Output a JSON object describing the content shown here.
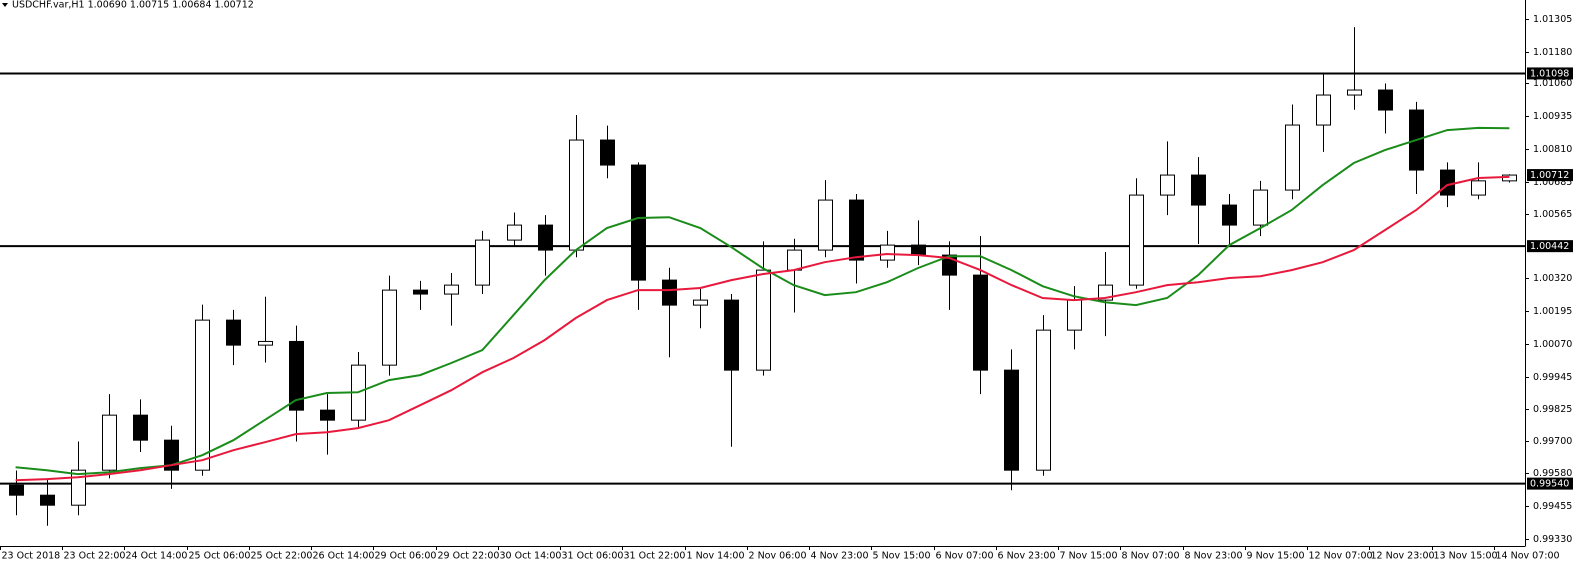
{
  "chart_data": {
    "type": "candlestick",
    "title": "USDCHF.var,H1  1.00690 1.00715 1.00684 1.00712",
    "categories": [
      "23 Oct 2018",
      null,
      "23 Oct 22:00",
      null,
      "24 Oct 14:00",
      null,
      "25 Oct 06:00",
      null,
      "25 Oct 22:00",
      null,
      "26 Oct 14:00",
      null,
      "29 Oct 06:00",
      null,
      "29 Oct 22:00",
      null,
      "30 Oct 14:00",
      null,
      "31 Oct 06:00",
      null,
      "31 Oct 22:00",
      null,
      "1 Nov 14:00",
      null,
      "2 Nov 06:00",
      null,
      "4 Nov 23:00",
      null,
      "5 Nov 15:00",
      null,
      "6 Nov 07:00",
      null,
      "6 Nov 23:00",
      null,
      "7 Nov 15:00",
      null,
      "8 Nov 07:00",
      null,
      "8 Nov 23:00",
      null,
      "9 Nov 15:00",
      null,
      "12 Nov 07:00",
      null,
      "12 Nov 23:00",
      null,
      "13 Nov 15:00",
      null,
      "14 Nov 07:00"
    ],
    "ohlc": [
      [
        0.99534,
        0.9959,
        0.9942,
        0.99496
      ],
      [
        0.99496,
        0.9956,
        0.9938,
        0.99458
      ],
      [
        0.99458,
        0.997,
        0.9942,
        0.99591
      ],
      [
        0.99591,
        0.9988,
        0.9956,
        0.998
      ],
      [
        0.998,
        0.9986,
        0.9966,
        0.99705
      ],
      [
        0.99705,
        0.9976,
        0.9952,
        0.99591
      ],
      [
        0.99591,
        1.0022,
        0.9957,
        1.00161
      ],
      [
        1.00161,
        1.002,
        0.9999,
        1.00066
      ],
      [
        1.00066,
        1.0025,
        1.0,
        1.0008
      ],
      [
        1.0008,
        1.0014,
        0.997,
        0.99819
      ],
      [
        0.99819,
        0.9988,
        0.9965,
        0.99781
      ],
      [
        0.99781,
        1.0004,
        0.9975,
        0.9999
      ],
      [
        0.9999,
        1.0033,
        0.9995,
        1.00275
      ],
      [
        1.00275,
        1.0031,
        1.002,
        1.0026
      ],
      [
        1.0026,
        1.0034,
        1.0014,
        1.00294
      ],
      [
        1.00294,
        1.005,
        1.0026,
        1.00465
      ],
      [
        1.00465,
        1.0057,
        1.0044,
        1.00522
      ],
      [
        1.00522,
        1.0056,
        1.0033,
        1.00427
      ],
      [
        1.00427,
        1.0094,
        1.004,
        1.00845
      ],
      [
        1.00845,
        1.009,
        1.007,
        1.0075
      ],
      [
        1.0075,
        1.0076,
        1.002,
        1.00313
      ],
      [
        1.00313,
        1.0036,
        1.0002,
        1.00218
      ],
      [
        1.00218,
        1.0028,
        1.0013,
        1.00237
      ],
      [
        1.00237,
        1.0026,
        0.9968,
        0.99971
      ],
      [
        0.99971,
        1.0046,
        0.9995,
        1.00351
      ],
      [
        1.00351,
        1.0047,
        1.0019,
        1.00427
      ],
      [
        1.00427,
        1.00693,
        1.004,
        1.00617
      ],
      [
        1.00617,
        1.0064,
        1.003,
        1.00389
      ],
      [
        1.00389,
        1.005,
        1.0036,
        1.00446
      ],
      [
        1.00446,
        1.0054,
        1.0037,
        1.00408
      ],
      [
        1.00408,
        1.0046,
        1.002,
        1.00332
      ],
      [
        1.00332,
        1.0048,
        0.9988,
        0.99971
      ],
      [
        0.99971,
        1.0005,
        0.99515,
        0.99591
      ],
      [
        0.99591,
        1.0018,
        0.9957,
        1.00123
      ],
      [
        1.00123,
        1.0029,
        1.0005,
        1.00237
      ],
      [
        1.00237,
        1.0042,
        1.001,
        1.00294
      ],
      [
        1.00294,
        1.007,
        1.0028,
        1.00636
      ],
      [
        1.00636,
        1.0084,
        1.0056,
        1.00712
      ],
      [
        1.00712,
        1.0078,
        1.0045,
        1.00598
      ],
      [
        1.00598,
        1.0064,
        1.0044,
        1.00522
      ],
      [
        1.00522,
        1.0069,
        1.0048,
        1.00655
      ],
      [
        1.00655,
        1.0098,
        1.0062,
        1.00902
      ],
      [
        1.00902,
        1.011,
        1.008,
        1.01016
      ],
      [
        1.01016,
        1.01274,
        1.0096,
        1.01035
      ],
      [
        1.01035,
        1.0106,
        1.0087,
        1.00959
      ],
      [
        1.00959,
        1.0099,
        1.0064,
        1.00731
      ],
      [
        1.00731,
        1.0076,
        1.0059,
        1.00636
      ],
      [
        1.00636,
        1.0076,
        1.0062,
        1.0069
      ],
      [
        1.0069,
        1.00715,
        1.00684,
        1.00712
      ]
    ],
    "series": [
      {
        "color": "#1a8c1a",
        "values": [
          0.99602,
          0.99591,
          0.99576,
          0.99583,
          0.99599,
          0.9961,
          0.99648,
          0.99705,
          0.99781,
          0.99857,
          0.99884,
          0.99887,
          0.99933,
          0.99952,
          0.99998,
          1.00047,
          1.0018,
          1.00313,
          1.00427,
          1.00511,
          1.00549,
          1.00552,
          1.00511,
          1.00438,
          1.00359,
          1.00294,
          1.00256,
          1.00267,
          1.00305,
          1.00359,
          1.00404,
          1.00404,
          1.00351,
          1.0029,
          1.00252,
          1.00229,
          1.00218,
          1.00245,
          1.00332,
          1.00446,
          1.00511,
          1.00579,
          1.00674,
          1.00758,
          1.00807,
          1.00845,
          1.00883,
          1.00891,
          1.0089
        ]
      },
      {
        "color": "#e8193c",
        "values": [
          0.99553,
          0.99557,
          0.99564,
          0.99576,
          0.99591,
          0.9961,
          0.99629,
          0.99667,
          0.99697,
          0.99728,
          0.99735,
          0.99751,
          0.99781,
          0.99838,
          0.99895,
          0.99963,
          1.00017,
          1.00085,
          1.00169,
          1.00237,
          1.00275,
          1.00275,
          1.00283,
          1.00313,
          1.00336,
          1.00351,
          1.00381,
          1.004,
          1.00412,
          1.00408,
          1.00397,
          1.00351,
          1.00294,
          1.00245,
          1.00237,
          1.00245,
          1.00267,
          1.00294,
          1.00305,
          1.00321,
          1.00328,
          1.00351,
          1.00381,
          1.00427,
          1.00503,
          1.00579,
          1.00674,
          1.00701,
          1.00705
        ]
      }
    ],
    "ylim": [
      0.99303,
      1.01377
    ],
    "yticks": [
      1.01305,
      {
        "value": 1.0118,
        "label": "1.01180"
      },
      {
        "value": 1.0106,
        "label": "1.01060"
      },
      1.00935,
      {
        "value": 1.0081,
        "label": "1.00810"
      },
      1.00685,
      1.00565,
      {
        "value": 1.0032,
        "label": "1.00320"
      },
      1.00195,
      {
        "value": 1.0007,
        "label": "1.00070"
      },
      0.99945,
      0.99825,
      {
        "value": 0.997,
        "label": "0.99700"
      },
      {
        "value": 0.9958,
        "label": "0.99580"
      },
      0.99455,
      {
        "value": 0.9933,
        "label": "0.99330"
      }
    ],
    "levels": [
      1.01098,
      1.00442,
      {
        "value": 0.9954,
        "label": "0.99540"
      }
    ],
    "up_color": "#ffffff",
    "down_color": "#000000"
  }
}
